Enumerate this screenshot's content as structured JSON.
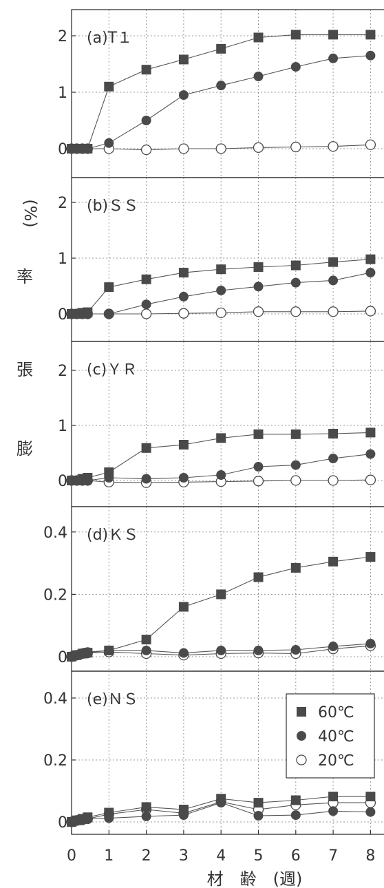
{
  "figure": {
    "ylabel_chars": [
      "膨",
      "張",
      "率",
      "(%)"
    ],
    "xlabel": "材　齢　(週)",
    "x_ticks": [
      "0",
      "1",
      "2",
      "3",
      "4",
      "5",
      "6",
      "7",
      "8"
    ],
    "legend": [
      {
        "label": "60℃",
        "marker": "filled-square",
        "color": "#4a4a4a"
      },
      {
        "label": "40℃",
        "marker": "filled-circle",
        "color": "#4a4a4a"
      },
      {
        "label": "20℃",
        "marker": "open-circle",
        "color": "#4a4a4a"
      }
    ]
  },
  "chart_data": [
    {
      "type": "line",
      "title": "(a)T１",
      "x": [
        0,
        0.14,
        0.29,
        0.43,
        1,
        2,
        3,
        4,
        5,
        6,
        7,
        8
      ],
      "ylim": [
        -0.3,
        2.5
      ],
      "y_ticks": [
        "0",
        "1",
        "2"
      ],
      "y_tick_values": [
        0,
        1,
        2
      ],
      "series": [
        {
          "name": "60℃",
          "values": [
            0,
            0,
            0,
            0,
            1.1,
            1.4,
            1.58,
            1.77,
            1.97,
            2.02,
            2.02,
            2.02
          ]
        },
        {
          "name": "40℃",
          "values": [
            0,
            0,
            0,
            0,
            0.1,
            0.5,
            0.95,
            1.12,
            1.28,
            1.45,
            1.6,
            1.65
          ]
        },
        {
          "name": "20℃",
          "values": [
            0,
            0,
            0,
            0,
            0,
            -0.02,
            0,
            0,
            0.02,
            0.03,
            0.04,
            0.07
          ]
        }
      ]
    },
    {
      "type": "line",
      "title": "(b)ＳＳ",
      "x": [
        0,
        0.14,
        0.29,
        0.43,
        1,
        2,
        3,
        4,
        5,
        6,
        7,
        8
      ],
      "ylim": [
        -0.3,
        2.5
      ],
      "y_ticks": [
        "0",
        "1",
        "2"
      ],
      "y_tick_values": [
        0,
        1,
        2
      ],
      "series": [
        {
          "name": "60℃",
          "values": [
            0,
            0,
            0.02,
            0.03,
            0.48,
            0.62,
            0.74,
            0.8,
            0.84,
            0.87,
            0.93,
            0.98
          ]
        },
        {
          "name": "40℃",
          "values": [
            0,
            0,
            0,
            0,
            0,
            0.17,
            0.31,
            0.42,
            0.49,
            0.56,
            0.6,
            0.74
          ]
        },
        {
          "name": "20℃",
          "values": [
            0,
            0,
            0,
            0,
            0,
            0,
            0.01,
            0.02,
            0.04,
            0.04,
            0.04,
            0.05
          ]
        }
      ]
    },
    {
      "type": "line",
      "title": "(c)ＹＲ",
      "x": [
        0,
        0.14,
        0.29,
        0.43,
        1,
        2,
        3,
        4,
        5,
        6,
        7,
        8
      ],
      "ylim": [
        -0.3,
        2.5
      ],
      "y_ticks": [
        "0",
        "1",
        "2"
      ],
      "y_tick_values": [
        0,
        1,
        2
      ],
      "series": [
        {
          "name": "60℃",
          "values": [
            0,
            0,
            0.03,
            0.05,
            0.15,
            0.59,
            0.65,
            0.77,
            0.84,
            0.84,
            0.85,
            0.87
          ]
        },
        {
          "name": "40℃",
          "values": [
            0,
            0,
            0,
            0,
            0.05,
            0.03,
            0.05,
            0.1,
            0.25,
            0.28,
            0.4,
            0.48
          ]
        },
        {
          "name": "20℃",
          "values": [
            0,
            0,
            0,
            0,
            -0.03,
            -0.04,
            -0.03,
            -0.02,
            -0.01,
            0,
            0,
            0.01
          ]
        }
      ]
    },
    {
      "type": "line",
      "title": "(d)ＫＳ",
      "x": [
        0,
        0.14,
        0.29,
        0.43,
        1,
        2,
        3,
        4,
        5,
        6,
        7,
        8
      ],
      "ylim": [
        -0.02,
        0.5
      ],
      "y_ticks": [
        "0",
        "0.2",
        "0.4"
      ],
      "y_tick_values": [
        0,
        0.2,
        0.4
      ],
      "series": [
        {
          "name": "60℃",
          "values": [
            0,
            0.005,
            0.01,
            0.013,
            0.02,
            0.055,
            0.16,
            0.2,
            0.255,
            0.285,
            0.305,
            0.32
          ]
        },
        {
          "name": "40℃",
          "values": [
            0,
            0.005,
            0.01,
            0.015,
            0.02,
            0.02,
            0.012,
            0.02,
            0.02,
            0.022,
            0.033,
            0.042
          ]
        },
        {
          "name": "20℃",
          "values": [
            0,
            0.005,
            0.01,
            0.012,
            0.015,
            0.01,
            0.005,
            0.01,
            0.012,
            0.01,
            0.025,
            0.035
          ]
        }
      ]
    },
    {
      "type": "line",
      "title": "(e)ＮＳ",
      "x": [
        0,
        0.14,
        0.29,
        0.43,
        1,
        2,
        3,
        4,
        5,
        6,
        7,
        8
      ],
      "ylim": [
        -0.02,
        0.5
      ],
      "y_ticks": [
        "0",
        "0.2",
        "0.4"
      ],
      "y_tick_values": [
        0,
        0.2,
        0.4
      ],
      "series": [
        {
          "name": "60℃",
          "values": [
            0,
            0.005,
            0.01,
            0.015,
            0.03,
            0.048,
            0.04,
            0.075,
            0.062,
            0.07,
            0.082,
            0.082
          ]
        },
        {
          "name": "40℃",
          "values": [
            0,
            0.003,
            0.005,
            0.01,
            0.012,
            0.018,
            0.022,
            0.062,
            0.02,
            0.022,
            0.035,
            0.032
          ]
        },
        {
          "name": "20℃",
          "values": [
            0,
            0.005,
            0.008,
            0.01,
            0.025,
            0.04,
            0.028,
            0.065,
            0.04,
            0.055,
            0.062,
            0.062
          ]
        }
      ]
    }
  ]
}
